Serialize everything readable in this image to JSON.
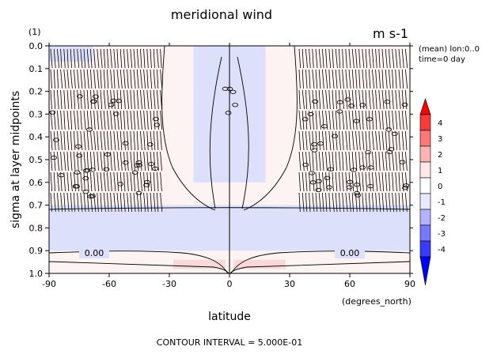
{
  "chart_data": {
    "type": "heatmap",
    "title": "meridional wind",
    "units": "m s-1",
    "panel_label": "(1)",
    "info_lines": [
      "(mean) lon:0..0",
      "time=0 day"
    ],
    "xlabel": "latitude",
    "xunit_label": "(degrees_north)",
    "ylabel": "sigma at layer midpoints",
    "xlim": [
      -90,
      90
    ],
    "ylim": [
      0.0,
      1.0
    ],
    "y_inverted": true,
    "x_ticks": [
      -90,
      -60,
      -30,
      0,
      30,
      60,
      90
    ],
    "x_tick_labels": [
      "-90",
      "-60",
      "-30",
      "0",
      "30",
      "60",
      "90"
    ],
    "y_ticks": [
      0.0,
      0.1,
      0.2,
      0.3,
      0.4,
      0.5,
      0.6,
      0.7,
      0.8,
      0.9,
      1.0
    ],
    "y_tick_labels": [
      "0.0",
      "0.1",
      "0.2",
      "0.3",
      "0.4",
      "0.5",
      "0.6",
      "0.7",
      "0.8",
      "0.9",
      "1.0"
    ],
    "contour_labels": [
      "0.00",
      "0.00"
    ],
    "footer": "CONTOUR INTERVAL = 5.000E-01",
    "colorbar": {
      "labels": [
        "4",
        "3",
        "2",
        "1",
        "0",
        "-1",
        "-2",
        "-3",
        "-4"
      ],
      "colors": [
        "#ff0000",
        "#ff3a3a",
        "#ff7878",
        "#ffb3b3",
        "#ffe8e8",
        "#ffffff",
        "#e8e8ff",
        "#b3b3ff",
        "#7878ff",
        "#3a3aff",
        "#0000ff"
      ]
    },
    "regions": [
      {
        "name": "upper-left-shading",
        "x": [
          -90,
          -68
        ],
        "y": [
          0.0,
          0.07
        ],
        "value": -0.25,
        "color": "#dde0fb"
      },
      {
        "name": "upper-mid-left",
        "x": [
          -68,
          -30
        ],
        "y": [
          0.0,
          0.7
        ],
        "value": 0.25,
        "color": "#fdf1f1"
      },
      {
        "name": "equatorial-negative",
        "x": [
          -18,
          18
        ],
        "y": [
          0.0,
          0.6
        ],
        "value": -0.25,
        "color": "#dde0fb"
      },
      {
        "name": "lower-negative-band",
        "x": [
          -90,
          90
        ],
        "y": [
          0.7,
          0.9
        ],
        "value": -0.25,
        "color": "#dde0fb"
      },
      {
        "name": "surface-positive-left",
        "x": [
          -28,
          -2
        ],
        "y": [
          0.94,
          0.98
        ],
        "value": 0.5,
        "color": "#fbd9d9"
      },
      {
        "name": "surface-positive-right",
        "x": [
          2,
          28
        ],
        "y": [
          0.94,
          0.98
        ],
        "value": 0.5,
        "color": "#fbd9d9"
      }
    ],
    "legend_position": "right"
  }
}
